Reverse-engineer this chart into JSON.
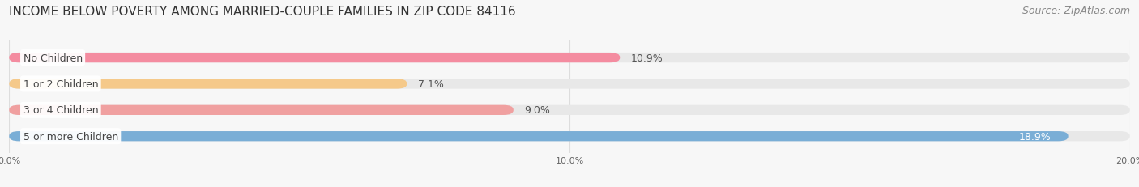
{
  "title": "INCOME BELOW POVERTY AMONG MARRIED-COUPLE FAMILIES IN ZIP CODE 84116",
  "source": "Source: ZipAtlas.com",
  "categories": [
    "No Children",
    "1 or 2 Children",
    "3 or 4 Children",
    "5 or more Children"
  ],
  "values": [
    10.9,
    7.1,
    9.0,
    18.9
  ],
  "bar_colors": [
    "#f48ca0",
    "#f5c98a",
    "#f0a0a0",
    "#7aaed6"
  ],
  "value_label_colors": [
    "#555555",
    "#555555",
    "#555555",
    "#ffffff"
  ],
  "xlim": [
    0,
    20.0
  ],
  "xticks": [
    0.0,
    10.0,
    20.0
  ],
  "xticklabels": [
    "0.0%",
    "10.0%",
    "20.0%"
  ],
  "title_fontsize": 11,
  "source_fontsize": 9,
  "label_fontsize": 9,
  "value_fontsize": 9,
  "bar_height": 0.38,
  "background_color": "#f7f7f7",
  "grid_color": "#dddddd"
}
